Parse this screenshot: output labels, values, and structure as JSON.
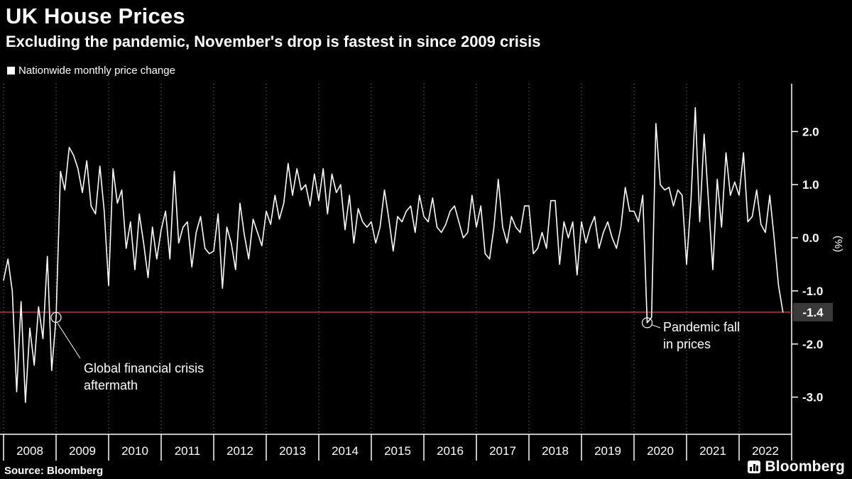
{
  "header": {
    "title": "UK House Prices",
    "subtitle": "Excluding the pandemic, November's drop is fastest in since 2009 crisis",
    "legend_label": "Nationwide monthly price change"
  },
  "footer": {
    "source": "Source: Bloomberg",
    "logo_text": "Bloomberg"
  },
  "colors": {
    "background": "#000000",
    "line": "#ffffff",
    "reference_line": "#d5294d",
    "badge_background": "#3a3a3a",
    "gridline": "#ffffff"
  },
  "chart_data": {
    "type": "line",
    "title": "UK House Prices",
    "series_name": "Nationwide monthly price change",
    "frequency": "monthly",
    "start": "2008-01",
    "end": "2022-11",
    "ylabel": "(%)",
    "ylim": [
      -3.7,
      2.9
    ],
    "xlim": [
      2008,
      2023
    ],
    "grid": "vertical-dotted-per-year",
    "legend_position": "top-left",
    "x_tick_labels": [
      "2008",
      "2009",
      "2010",
      "2011",
      "2012",
      "2013",
      "2014",
      "2015",
      "2016",
      "2017",
      "2018",
      "2019",
      "2020",
      "2021",
      "2022"
    ],
    "y_ticks": [
      {
        "value": 2.0,
        "label": "2.0"
      },
      {
        "value": 1.0,
        "label": "1.0"
      },
      {
        "value": 0.0,
        "label": "0.0"
      },
      {
        "value": -1.0,
        "label": "-1.0"
      },
      {
        "value": -2.0,
        "label": "-2.0"
      },
      {
        "value": -3.0,
        "label": "-3.0"
      }
    ],
    "reference_line": {
      "value": -1.4,
      "label": "-1.4"
    },
    "values": [
      -0.8,
      -0.4,
      -1.0,
      -2.9,
      -1.2,
      -3.1,
      -1.7,
      -2.4,
      -1.3,
      -1.9,
      -0.35,
      -2.5,
      -1.5,
      1.25,
      0.9,
      1.7,
      1.55,
      1.3,
      0.85,
      1.45,
      0.6,
      0.45,
      1.35,
      0.5,
      -0.9,
      1.3,
      0.65,
      0.9,
      -0.2,
      0.3,
      -0.6,
      0.45,
      -0.1,
      -0.75,
      0.2,
      -0.4,
      0.15,
      0.5,
      -0.4,
      1.25,
      -0.1,
      0.2,
      0.3,
      -0.55,
      0.1,
      0.4,
      -0.2,
      -0.3,
      -0.25,
      0.45,
      -0.95,
      0.2,
      -0.1,
      -0.6,
      0.65,
      0.05,
      -0.4,
      0.35,
      0.1,
      -0.15,
      0.5,
      0.25,
      0.8,
      0.35,
      0.65,
      1.4,
      0.8,
      1.3,
      0.9,
      1.0,
      0.6,
      1.2,
      0.7,
      1.3,
      0.45,
      1.2,
      0.85,
      1.0,
      0.15,
      0.8,
      -0.1,
      0.55,
      0.3,
      0.2,
      0.3,
      -0.1,
      0.2,
      0.9,
      0.35,
      -0.25,
      0.4,
      0.3,
      0.5,
      0.6,
      0.1,
      0.8,
      0.4,
      0.3,
      0.75,
      0.2,
      0.1,
      0.25,
      0.5,
      0.6,
      0.3,
      0.0,
      0.1,
      0.8,
      0.2,
      0.6,
      -0.3,
      -0.4,
      0.2,
      1.1,
      0.2,
      -0.1,
      0.4,
      0.2,
      0.1,
      0.6,
      0.6,
      -0.3,
      -0.2,
      0.1,
      -0.2,
      0.7,
      0.7,
      -0.5,
      0.3,
      0.0,
      0.3,
      -0.7,
      0.3,
      -0.1,
      0.2,
      0.4,
      -0.2,
      0.1,
      0.3,
      0.0,
      -0.2,
      0.2,
      0.95,
      0.5,
      0.5,
      0.3,
      0.8,
      -1.6,
      -1.5,
      2.15,
      1.0,
      0.9,
      0.95,
      0.6,
      0.9,
      0.8,
      -0.5,
      0.7,
      2.45,
      0.3,
      1.95,
      0.7,
      -0.6,
      1.1,
      0.2,
      1.6,
      0.8,
      1.05,
      0.8,
      1.6,
      0.3,
      0.4,
      0.9,
      0.25,
      0.1,
      0.8,
      0.0,
      -0.9,
      -1.4
    ],
    "annotations": [
      {
        "text": "Global financial crisis aftermath",
        "line1": "Global financial crisis",
        "line2": "aftermath",
        "index": 12,
        "value": -1.5
      },
      {
        "text": "Pandemic fall in prices",
        "line1": "Pandemic fall",
        "line2": "in prices",
        "index": 147,
        "value": -1.6
      }
    ]
  }
}
